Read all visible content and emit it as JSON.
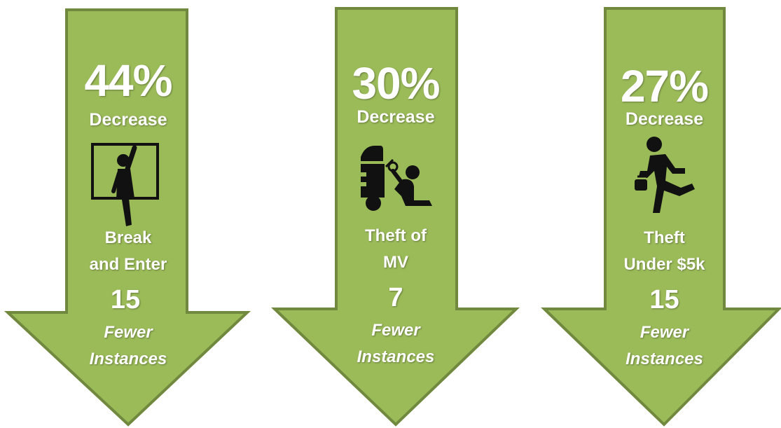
{
  "colors": {
    "arrow_fill": "#9bbb59",
    "arrow_stroke": "#71893f",
    "text": "#ffffff",
    "icon": "#111111"
  },
  "cards": [
    {
      "percent": "44%",
      "decrease_label": "Decrease",
      "crime_line1": "Break",
      "crime_line2": "and Enter",
      "count": "15",
      "fewer_line1": "Fewer",
      "fewer_line2": "Instances",
      "icon": "burglar-window-icon"
    },
    {
      "percent": "30%",
      "decrease_label": "Decrease",
      "crime_line1": "Theft of",
      "crime_line2": "MV",
      "count": "7",
      "fewer_line1": "Fewer",
      "fewer_line2": "Instances",
      "icon": "car-thief-icon"
    },
    {
      "percent": "27%",
      "decrease_label": "Decrease",
      "crime_line1": "Theft",
      "crime_line2": "Under $5k",
      "count": "15",
      "fewer_line1": "Fewer",
      "fewer_line2": "Instances",
      "icon": "running-thief-icon"
    }
  ]
}
